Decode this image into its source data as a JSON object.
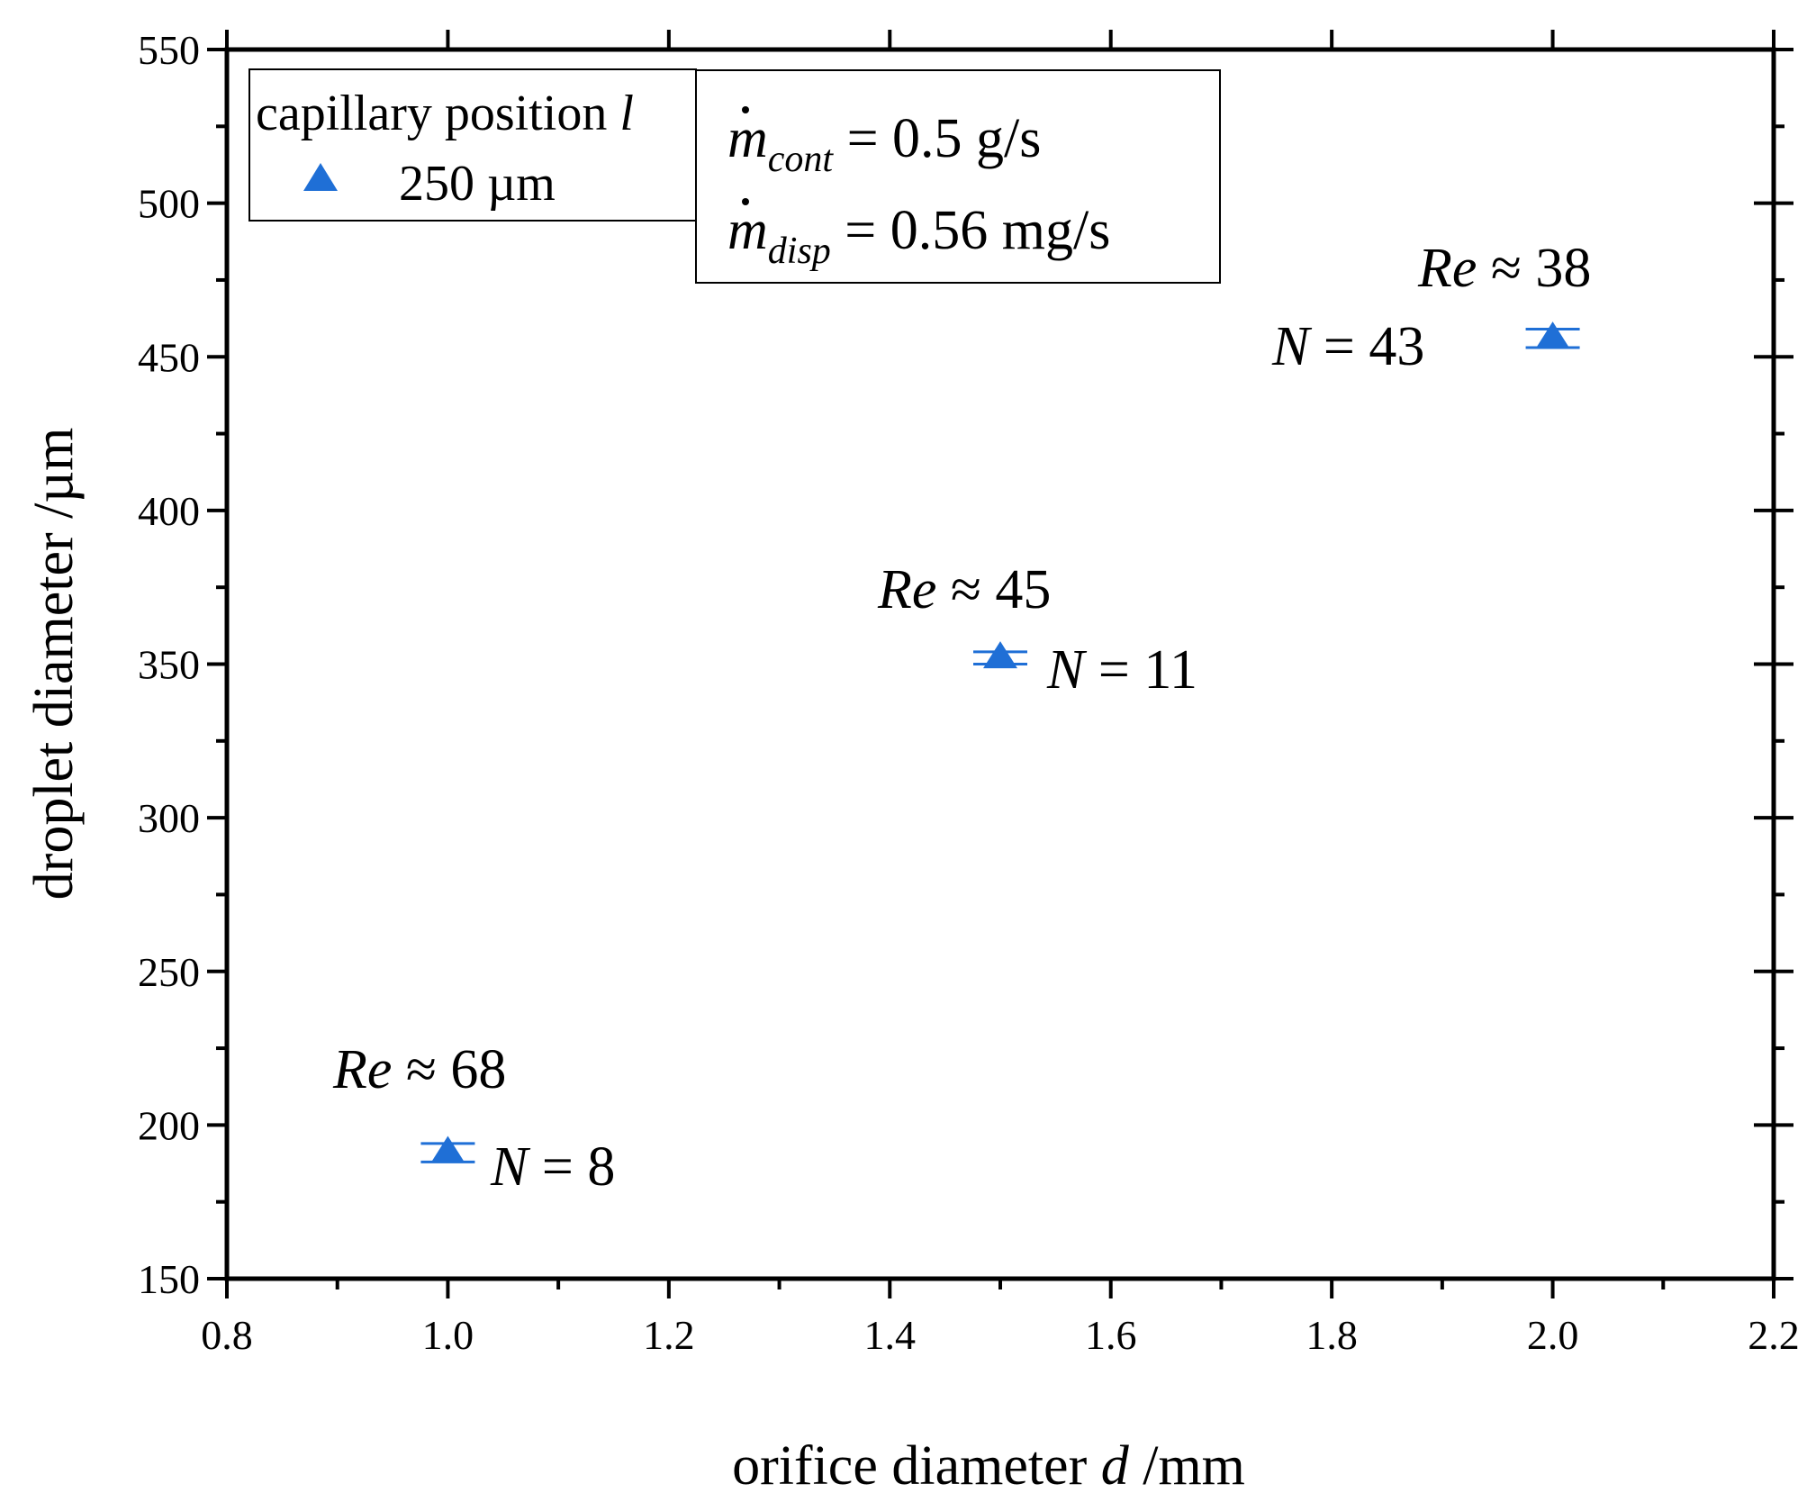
{
  "chart_data": {
    "type": "scatter",
    "title": "",
    "xlabel": "orifice diameter",
    "xlabel_symbol": "d",
    "xlabel_unit": "/mm",
    "ylabel": "droplet diameter /µm",
    "xlim": [
      0.8,
      2.2
    ],
    "ylim": [
      150,
      550
    ],
    "xticks": [
      0.8,
      1.0,
      1.2,
      1.4,
      1.6,
      1.8,
      2.0,
      2.2
    ],
    "xtick_labels": [
      "0.8",
      "1.0",
      "1.2",
      "1.4",
      "1.6",
      "1.8",
      "2.0",
      "2.2"
    ],
    "yticks": [
      150,
      200,
      250,
      300,
      350,
      400,
      450,
      500,
      550
    ],
    "ytick_labels": [
      "150",
      "200",
      "250",
      "300",
      "350",
      "400",
      "450",
      "500",
      "550"
    ],
    "x_minor_step": 0.1,
    "y_minor_step": 25,
    "grid": false,
    "marker_color": "#1f6fd6",
    "series": [
      {
        "name": "250 µm",
        "x": [
          1.0,
          1.5,
          2.0
        ],
        "y": [
          191,
          352,
          456
        ],
        "error": [
          3,
          2,
          3
        ],
        "annotations": [
          {
            "re": "68",
            "n": "8"
          },
          {
            "re": "45",
            "n": "11"
          },
          {
            "re": "38",
            "n": "43"
          }
        ]
      }
    ],
    "annotation_labels": {
      "re_symbol": "Re",
      "approx": " ≈ ",
      "n_symbol": "N",
      "equals": " = "
    },
    "legend": {
      "title_text": "capillary position",
      "title_symbol": "l",
      "entry": "250 µm",
      "position": "top-left"
    },
    "info_box": {
      "line1_symbol": "m",
      "line1_sub": "cont",
      "line1_value": " = 0.5 g/s",
      "line2_symbol": "m",
      "line2_sub": "disp",
      "line2_value": " = 0.56 mg/s"
    }
  }
}
